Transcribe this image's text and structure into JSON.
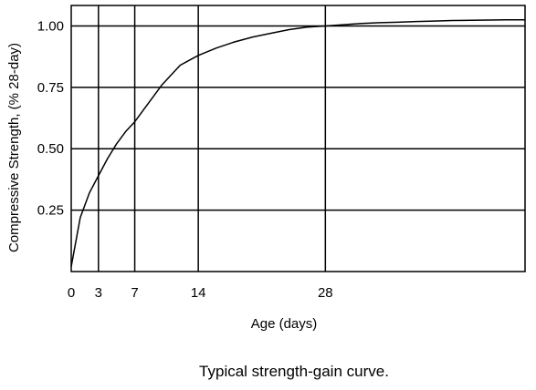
{
  "chart_data": {
    "type": "line",
    "title": "",
    "caption": "Typical strength-gain curve.",
    "xlabel": "Age (days)",
    "ylabel": "Compressive Strength, (% 28-day)",
    "xlim": [
      0,
      50
    ],
    "ylim": [
      0,
      1.0833
    ],
    "x_ticks": [
      {
        "value": 0,
        "label": "0"
      },
      {
        "value": 3,
        "label": "3"
      },
      {
        "value": 7,
        "label": "7"
      },
      {
        "value": 14,
        "label": "14"
      },
      {
        "value": 28,
        "label": "28"
      }
    ],
    "y_ticks": [
      {
        "value": 0.25,
        "label": "0.25"
      },
      {
        "value": 0.5,
        "label": "0.50"
      },
      {
        "value": 0.75,
        "label": "0.75"
      },
      {
        "value": 1.0,
        "label": "1.00"
      }
    ],
    "grid": true,
    "legend": "none",
    "series": [
      {
        "x": [
          0,
          1,
          2,
          3,
          4,
          5,
          6,
          7,
          8,
          9,
          10,
          11,
          12,
          13,
          14,
          16,
          18,
          20,
          22,
          24,
          26,
          28,
          30,
          32,
          34,
          36,
          38,
          40,
          42,
          44,
          46,
          48,
          50
        ],
        "y": [
          0.02,
          0.22,
          0.32,
          0.39,
          0.46,
          0.52,
          0.57,
          0.61,
          0.66,
          0.71,
          0.76,
          0.8,
          0.84,
          0.86,
          0.88,
          0.91,
          0.935,
          0.955,
          0.97,
          0.985,
          0.995,
          1.0,
          1.005,
          1.01,
          1.013,
          1.015,
          1.018,
          1.02,
          1.022,
          1.023,
          1.024,
          1.025,
          1.025
        ],
        "color": "#000000"
      }
    ]
  }
}
